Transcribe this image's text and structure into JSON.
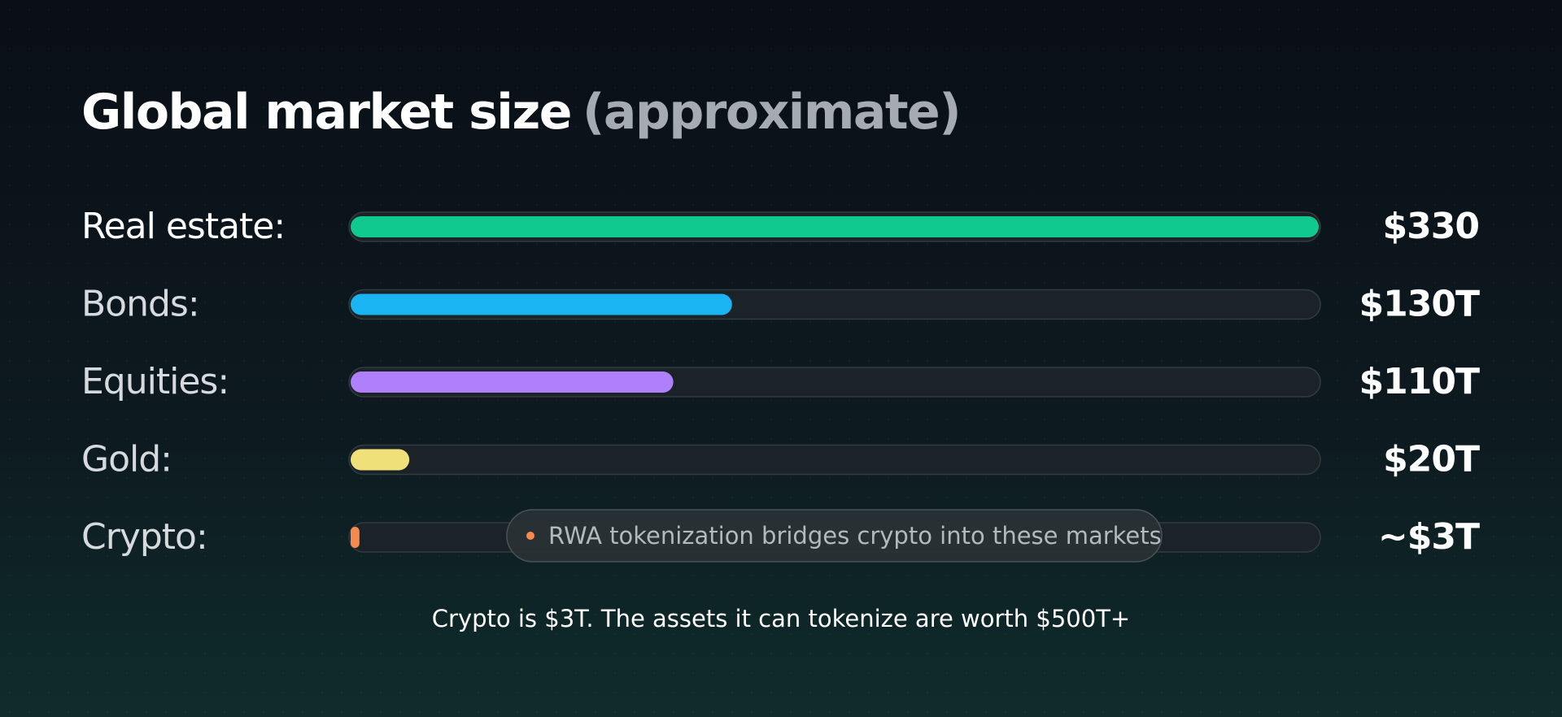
{
  "chart_data": {
    "type": "hbar",
    "title": "Global market size",
    "subtitle": "(approximate)",
    "categories": [
      "Real estate:",
      "Bonds:",
      "Equities:",
      "Gold:",
      "Crypto:"
    ],
    "values": [
      330,
      130,
      110,
      20,
      3
    ],
    "value_labels": [
      "$330",
      "$130T",
      "$110T",
      "$20T",
      "~$3T"
    ],
    "colors": [
      "#10c98f",
      "#1ab4f2",
      "#b07ffb",
      "#f0e07a",
      "#f58a4f"
    ],
    "xlim": [
      0,
      330
    ],
    "annotation": "RWA tokenization bridges crypto into these markets",
    "note": "Crypto is $3T. The assets it can tokenize are worth $500T+"
  }
}
